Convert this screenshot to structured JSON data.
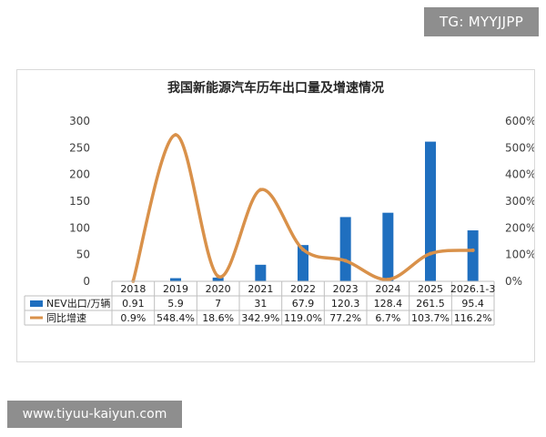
{
  "watermark_top": "TG: MYYJJPP",
  "watermark_bottom": "www.tiyuu-kaiyun.com",
  "chart_data": {
    "type": "bar",
    "title": "我国新能源汽车历年出口量及增速情况",
    "categories": [
      "2018",
      "2019",
      "2020",
      "2021",
      "2022",
      "2023",
      "2024",
      "2025",
      "2026.1-3"
    ],
    "series": [
      {
        "name": "NEV出口/万辆",
        "type": "bar",
        "axis": "left",
        "color": "#1f6fbf",
        "values": [
          0.91,
          5.9,
          7,
          31,
          67.9,
          120.3,
          128.4,
          261.5,
          95.4
        ],
        "labels": [
          "0.91",
          "5.9",
          "7",
          "31",
          "67.9",
          "120.3",
          "128.4",
          "261.5",
          "95.4"
        ]
      },
      {
        "name": "同比增速",
        "type": "line",
        "axis": "right",
        "color": "#d9914a",
        "values": [
          0.9,
          548.4,
          18.6,
          342.9,
          119.0,
          77.2,
          6.7,
          103.7,
          116.2
        ],
        "labels": [
          "0.9%",
          "548.4%",
          "18.6%",
          "342.9%",
          "119.0%",
          "77.2%",
          "6.7%",
          "103.7%",
          "116.2%"
        ]
      }
    ],
    "y_left": {
      "min": 0,
      "max": 300,
      "ticks": [
        "0",
        "50",
        "100",
        "150",
        "200",
        "250",
        "300"
      ]
    },
    "y_right": {
      "min": 0,
      "max": 600,
      "ticks": [
        "0%",
        "100%",
        "200%",
        "300%",
        "400%",
        "500%",
        "600%"
      ]
    },
    "grid": false,
    "legend": "data-table-left"
  }
}
